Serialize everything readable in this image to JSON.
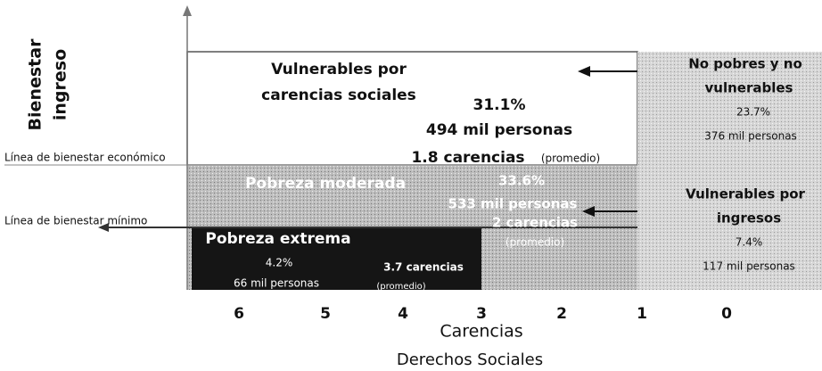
{
  "y_axis_label": [
    "Bienestar",
    "ingreso"
  ],
  "lines": {
    "economic": "Línea de bienestar económico",
    "minimum": "Línea de bienestar mínimo"
  },
  "regions": {
    "vulnerable_social": {
      "title": [
        "Vulnerables por",
        "carencias sociales"
      ],
      "percent": "31.1%",
      "people": "494 mil personas",
      "deprivations": "1.8 carencias",
      "note": "(promedio)"
    },
    "not_poor": {
      "title": [
        "No pobres y no",
        "vulnerables"
      ],
      "percent": "23.7%",
      "people": "376 mil personas"
    },
    "moderate": {
      "title": "Pobreza moderada",
      "percent": "33.6%",
      "people": "533 mil personas",
      "deprivations": "2 carencias",
      "note": "(promedio)"
    },
    "vulnerable_income": {
      "title": [
        "Vulnerables por",
        "ingresos"
      ],
      "percent": "7.4%",
      "people": "117 mil personas"
    },
    "extreme": {
      "title": "Pobreza extrema",
      "percent": "4.2%",
      "people": "66 mil personas",
      "deprivations": "3.7  carencias",
      "note": "(promedio)"
    }
  },
  "x_axis": {
    "ticks": [
      "6",
      "5",
      "4",
      "3",
      "2",
      "1",
      "0"
    ],
    "label": "Carencias",
    "sublabel": "Derechos Sociales"
  }
}
